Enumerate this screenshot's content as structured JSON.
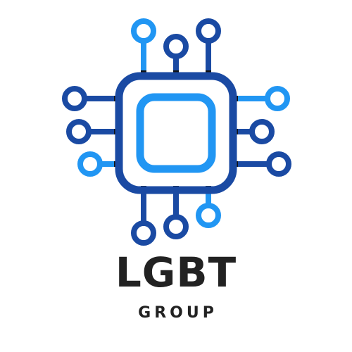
{
  "logo": {
    "icon": "circuit-chip-icon",
    "title": "LGBT",
    "subtitle": "GROUP",
    "colors": {
      "dark_blue": "#1a4aa3",
      "light_blue": "#2196f3",
      "text": "#222222",
      "background": "#ffffff"
    }
  }
}
